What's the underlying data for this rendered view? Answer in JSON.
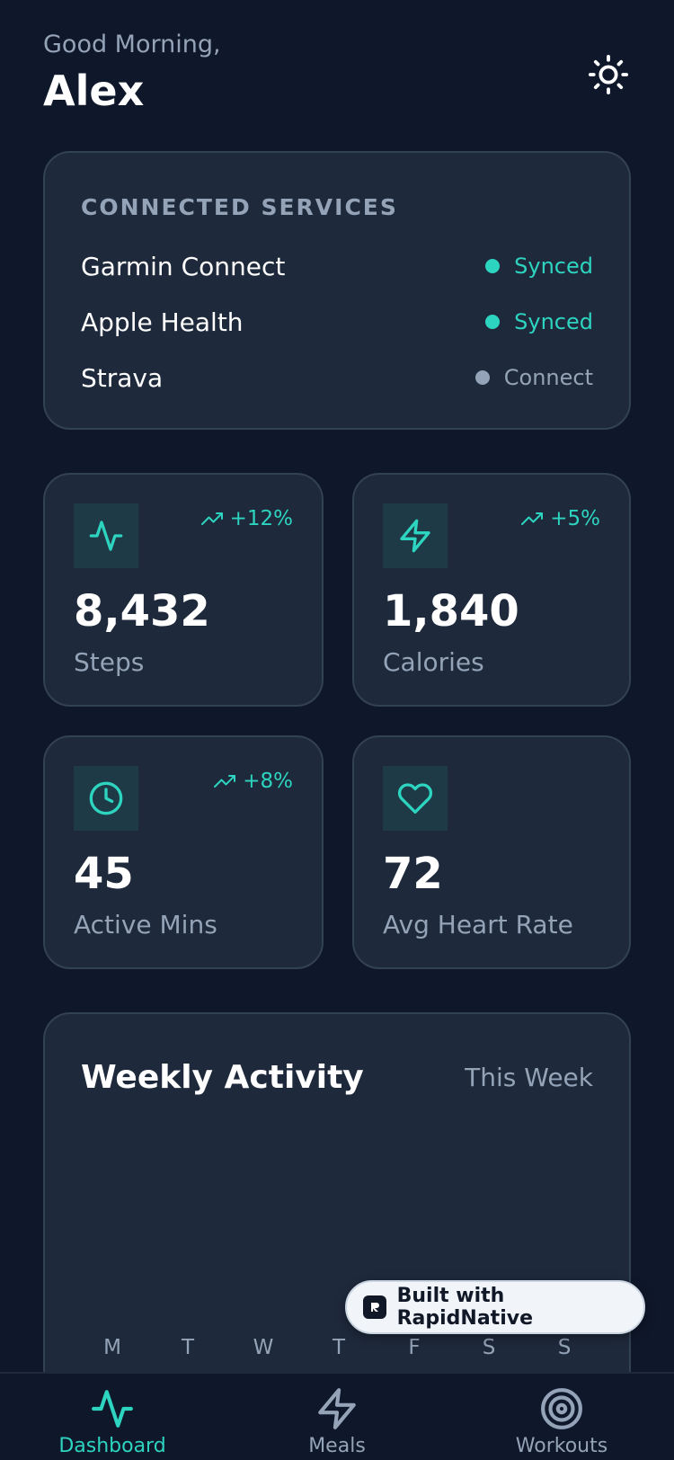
{
  "header": {
    "greeting": "Good Morning,",
    "name": "Alex",
    "theme_icon": "sun-icon"
  },
  "services": {
    "title": "CONNECTED SERVICES",
    "items": [
      {
        "name": "Garmin Connect",
        "status": "Synced",
        "status_color": "#2dd4bf"
      },
      {
        "name": "Apple Health",
        "status": "Synced",
        "status_color": "#2dd4bf"
      },
      {
        "name": "Strava",
        "status": "Connect",
        "status_color": "#94a3b8"
      }
    ]
  },
  "stats": [
    {
      "icon": "activity-icon",
      "trend": "+12%",
      "value": "8,432",
      "label": "Steps"
    },
    {
      "icon": "zap-icon",
      "trend": "+5%",
      "value": "1,840",
      "label": "Calories"
    },
    {
      "icon": "clock-icon",
      "trend": "+8%",
      "value": "45",
      "label": "Active Mins"
    },
    {
      "icon": "heart-icon",
      "trend": "",
      "value": "72",
      "label": "Avg Heart Rate"
    }
  ],
  "weekly": {
    "title": "Weekly Activity",
    "range": "This Week",
    "days": [
      "M",
      "T",
      "W",
      "T",
      "F",
      "S",
      "S"
    ]
  },
  "badge": {
    "text": "Built with RapidNative"
  },
  "tabs": [
    {
      "label": "Dashboard",
      "icon": "activity-icon",
      "active": true
    },
    {
      "label": "Meals",
      "icon": "zap-icon",
      "active": false
    },
    {
      "label": "Workouts",
      "icon": "target-icon",
      "active": false
    }
  ],
  "colors": {
    "accent": "#2dd4bf",
    "background": "#0f172a",
    "card": "#1e293b",
    "muted": "#94a3b8"
  }
}
